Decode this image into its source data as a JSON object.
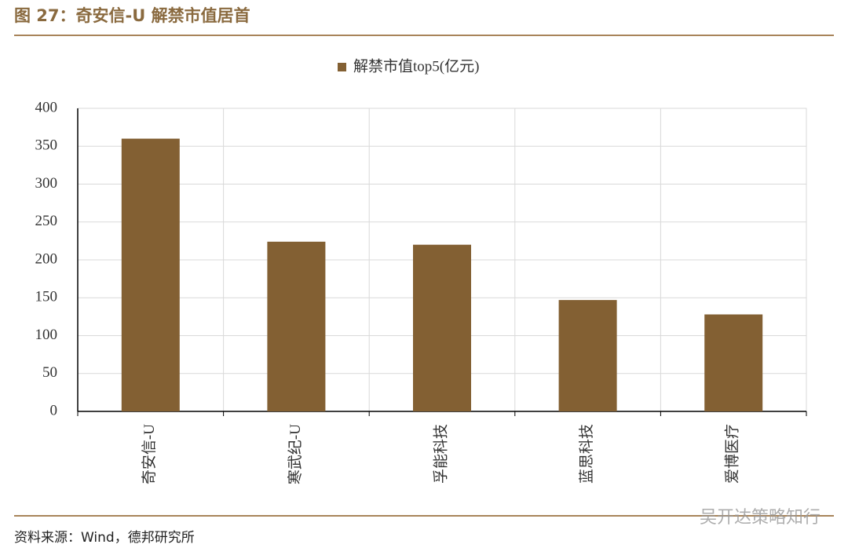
{
  "header": {
    "title": "图 27：奇安信-U 解禁市值居首"
  },
  "chart_data": {
    "type": "bar",
    "categories": [
      "奇安信-U",
      "寒武纪-U",
      "孚能科技",
      "蓝思科技",
      "爱博医疗"
    ],
    "series": [
      {
        "name": "解禁市值top5(亿元)",
        "color": "#836033",
        "values": [
          360,
          224,
          220,
          147,
          128
        ]
      }
    ],
    "ylim": [
      0,
      400
    ],
    "yticks": [
      0,
      50,
      100,
      150,
      200,
      250,
      300,
      350,
      400
    ],
    "grid": true,
    "legend": "top"
  },
  "footer": {
    "source": "资料来源：Wind，德邦研究所",
    "watermark": "吴开达策略知行"
  }
}
